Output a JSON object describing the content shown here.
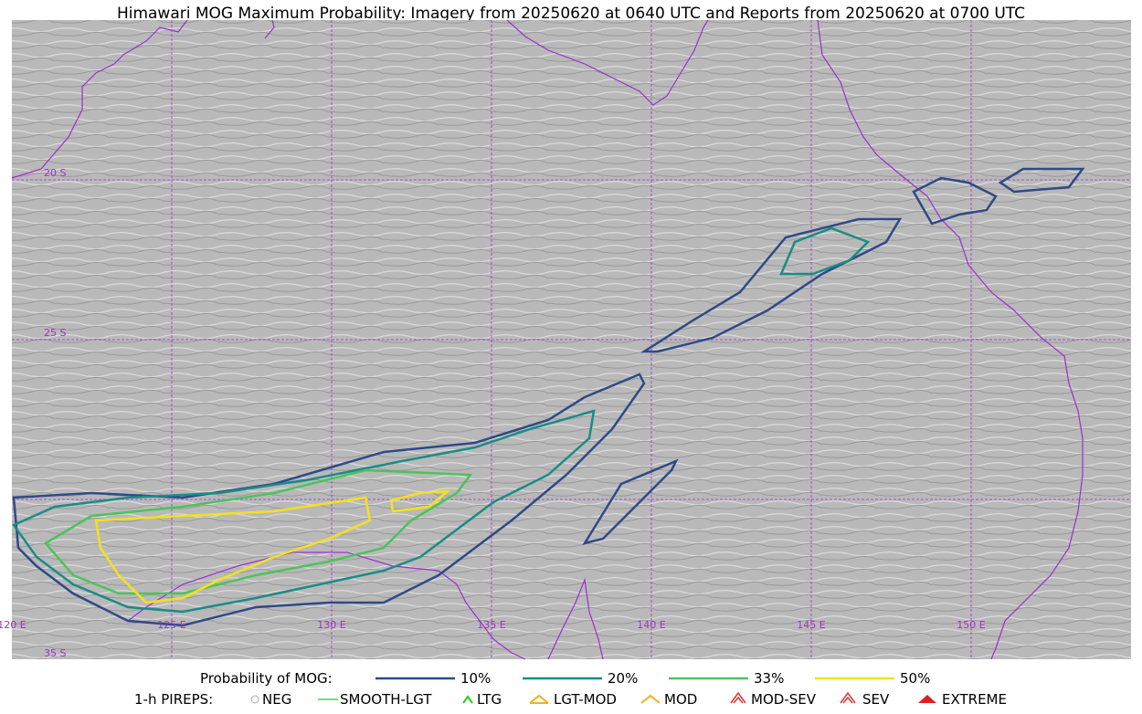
{
  "header": {
    "title": "Himawari MOG Maximum Probability: Imagery from 20250620 at 0640 UTC and Reports from 20250620 at 0700 UTC"
  },
  "map": {
    "lat_labels": [
      "20 S",
      "25 S",
      "35 S"
    ],
    "lon_labels": [
      "120 E",
      "125 E",
      "130 E",
      "135 E",
      "140 E",
      "145 E",
      "150 E"
    ]
  },
  "legend": {
    "probability": {
      "title": "Probability of MOG:",
      "items": [
        "10%",
        "20%",
        "33%",
        "50%"
      ]
    },
    "pireps": {
      "title": "1-h PIREPS:",
      "items": [
        "NEG",
        "SMOOTH-LGT",
        "LTG",
        "LGT-MOD",
        "MOD",
        "MOD-SEV",
        "SEV",
        "EXTREME"
      ]
    }
  }
}
